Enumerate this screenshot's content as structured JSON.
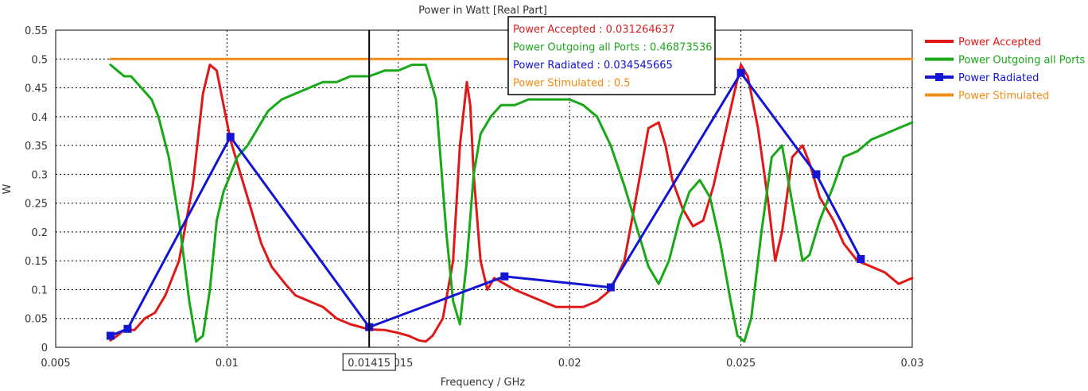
{
  "chart_data": {
    "type": "line",
    "title": "Power in Watt [Real Part]",
    "xlabel": "Frequency / GHz",
    "ylabel": "W",
    "xlim": [
      0.005,
      0.03
    ],
    "ylim": [
      0,
      0.55
    ],
    "xticks": [
      0.005,
      0.01,
      0.015,
      0.02,
      0.025,
      0.03
    ],
    "xtick_labels": [
      "0.005",
      "0.01",
      "0.015",
      "0.02",
      "0.025",
      "0.03"
    ],
    "yticks": [
      0,
      0.05,
      0.1,
      0.15,
      0.2,
      0.25,
      0.3,
      0.35,
      0.4,
      0.45,
      0.5,
      0.55
    ],
    "ytick_labels": [
      "0",
      "0.05",
      "0.1",
      "0.15",
      "0.2",
      "0.25",
      "0.3",
      "0.35",
      "0.4",
      "0.45",
      "0.5",
      "0.55"
    ],
    "grid": true,
    "legend_position": "right",
    "cursor": {
      "x": 0.01415,
      "label": "0.01415",
      "readouts": [
        {
          "label": "Power Accepted : 0.031264637",
          "color": "#d42020"
        },
        {
          "label": "Power Outgoing all Ports : 0.46873536",
          "color": "#1fa81f"
        },
        {
          "label": "Power Radiated : 0.034545665",
          "color": "#1010cc"
        },
        {
          "label": "Power Stimulated : 0.5",
          "color": "#f08a10"
        }
      ]
    },
    "series": [
      {
        "name": "Power Accepted",
        "color": "#e01818",
        "marker": false,
        "x": [
          0.0066,
          0.0068,
          0.007,
          0.0073,
          0.0076,
          0.0079,
          0.0082,
          0.0086,
          0.009,
          0.0093,
          0.0095,
          0.0097,
          0.0099,
          0.0101,
          0.0104,
          0.0107,
          0.011,
          0.0113,
          0.0117,
          0.012,
          0.0124,
          0.0128,
          0.0132,
          0.0136,
          0.01415,
          0.0146,
          0.015,
          0.0153,
          0.0156,
          0.0158,
          0.016,
          0.0163,
          0.0166,
          0.0168,
          0.017,
          0.0171,
          0.0172,
          0.0174,
          0.0176,
          0.0178,
          0.0181,
          0.0184,
          0.0188,
          0.0192,
          0.0196,
          0.02,
          0.0204,
          0.0208,
          0.0212,
          0.0216,
          0.022,
          0.0223,
          0.0226,
          0.0228,
          0.023,
          0.0233,
          0.0236,
          0.0239,
          0.0242,
          0.0245,
          0.0248,
          0.025,
          0.0252,
          0.0255,
          0.0258,
          0.026,
          0.0262,
          0.0265,
          0.0268,
          0.027,
          0.0273,
          0.0277,
          0.028,
          0.0284,
          0.0288,
          0.0292,
          0.0296,
          0.03
        ],
        "y": [
          0.012,
          0.02,
          0.03,
          0.03,
          0.05,
          0.06,
          0.09,
          0.15,
          0.28,
          0.44,
          0.49,
          0.48,
          0.42,
          0.36,
          0.3,
          0.24,
          0.18,
          0.14,
          0.11,
          0.09,
          0.08,
          0.07,
          0.05,
          0.04,
          0.031,
          0.03,
          0.025,
          0.02,
          0.012,
          0.01,
          0.02,
          0.05,
          0.15,
          0.35,
          0.46,
          0.42,
          0.3,
          0.15,
          0.1,
          0.12,
          0.11,
          0.1,
          0.09,
          0.08,
          0.07,
          0.07,
          0.07,
          0.08,
          0.1,
          0.15,
          0.28,
          0.38,
          0.39,
          0.35,
          0.29,
          0.24,
          0.21,
          0.22,
          0.28,
          0.36,
          0.44,
          0.49,
          0.47,
          0.38,
          0.25,
          0.15,
          0.2,
          0.33,
          0.35,
          0.32,
          0.26,
          0.22,
          0.18,
          0.15,
          0.14,
          0.13,
          0.11,
          0.12
        ]
      },
      {
        "name": "Power Outgoing all Ports",
        "color": "#18a818",
        "marker": false,
        "x": [
          0.0066,
          0.0068,
          0.007,
          0.0072,
          0.0075,
          0.0078,
          0.008,
          0.0083,
          0.0086,
          0.0089,
          0.0091,
          0.0093,
          0.0095,
          0.0097,
          0.0099,
          0.0101,
          0.0103,
          0.0106,
          0.0109,
          0.0112,
          0.0116,
          0.012,
          0.0124,
          0.0128,
          0.0132,
          0.0136,
          0.01415,
          0.0146,
          0.015,
          0.0154,
          0.0158,
          0.0161,
          0.0164,
          0.0166,
          0.0168,
          0.017,
          0.0172,
          0.0174,
          0.0177,
          0.018,
          0.0184,
          0.0188,
          0.0192,
          0.0196,
          0.02,
          0.0204,
          0.0208,
          0.0212,
          0.0216,
          0.022,
          0.0223,
          0.0226,
          0.0229,
          0.0232,
          0.0235,
          0.0238,
          0.0241,
          0.0244,
          0.0247,
          0.0249,
          0.0251,
          0.0253,
          0.0256,
          0.0259,
          0.0262,
          0.0265,
          0.0268,
          0.027,
          0.0273,
          0.0277,
          0.028,
          0.0284,
          0.0288,
          0.0292,
          0.0296,
          0.03
        ],
        "y": [
          0.49,
          0.48,
          0.47,
          0.47,
          0.45,
          0.43,
          0.4,
          0.33,
          0.22,
          0.08,
          0.01,
          0.02,
          0.1,
          0.22,
          0.27,
          0.3,
          0.33,
          0.35,
          0.38,
          0.41,
          0.43,
          0.44,
          0.45,
          0.46,
          0.46,
          0.47,
          0.47,
          0.48,
          0.48,
          0.49,
          0.49,
          0.43,
          0.2,
          0.08,
          0.04,
          0.15,
          0.3,
          0.37,
          0.4,
          0.42,
          0.42,
          0.43,
          0.43,
          0.43,
          0.43,
          0.42,
          0.4,
          0.35,
          0.28,
          0.2,
          0.14,
          0.11,
          0.15,
          0.22,
          0.27,
          0.29,
          0.26,
          0.18,
          0.08,
          0.02,
          0.01,
          0.05,
          0.2,
          0.33,
          0.35,
          0.25,
          0.15,
          0.16,
          0.22,
          0.28,
          0.33,
          0.34,
          0.36,
          0.37,
          0.38,
          0.39
        ]
      },
      {
        "name": "Power Radiated",
        "color": "#1414d4",
        "marker": true,
        "x": [
          0.0066,
          0.0071,
          0.0101,
          0.01415,
          0.0181,
          0.0212,
          0.025,
          0.0272,
          0.0285
        ],
        "y": [
          0.02,
          0.032,
          0.365,
          0.035,
          0.123,
          0.104,
          0.476,
          0.3,
          0.153
        ]
      },
      {
        "name": "Power Stimulated",
        "color": "#f28c18",
        "marker": false,
        "x": [
          0.0066,
          0.03
        ],
        "y": [
          0.5,
          0.5
        ]
      }
    ]
  }
}
